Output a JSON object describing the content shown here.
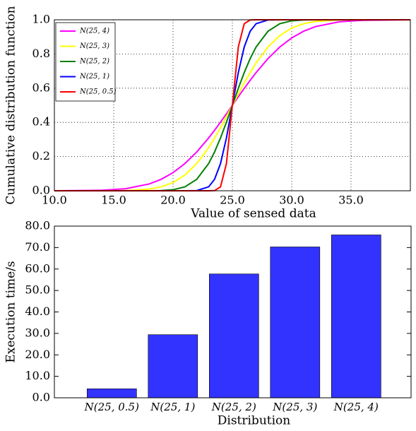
{
  "chart_data": [
    {
      "type": "line",
      "xlabel": "Value of sensed data",
      "ylabel": "Cumulative distribution function",
      "x": [
        10,
        14,
        16,
        18,
        19,
        20,
        21,
        22,
        23,
        23.5,
        24,
        24.5,
        25,
        25.5,
        26,
        26.5,
        27,
        28,
        29,
        30,
        31,
        32,
        34,
        36,
        40
      ],
      "series": [
        {
          "name": "N(25, 4)",
          "color": "#ff00ff",
          "values": [
            0,
            0.003,
            0.012,
            0.04,
            0.067,
            0.106,
            0.159,
            0.227,
            0.309,
            0.354,
            0.401,
            0.45,
            0.5,
            0.55,
            0.599,
            0.646,
            0.691,
            0.773,
            0.841,
            0.894,
            0.933,
            0.96,
            0.988,
            0.997,
            1
          ]
        },
        {
          "name": "N(25, 3)",
          "color": "#ffff00",
          "values": [
            0,
            0,
            0.001,
            0.01,
            0.023,
            0.048,
            0.092,
            0.159,
            0.252,
            0.309,
            0.369,
            0.434,
            0.5,
            0.566,
            0.631,
            0.691,
            0.748,
            0.841,
            0.908,
            0.952,
            0.977,
            0.99,
            0.999,
            1,
            1
          ]
        },
        {
          "name": "N(25, 2)",
          "color": "#007f00",
          "values": [
            0,
            0,
            0,
            0,
            0.001,
            0.006,
            0.023,
            0.067,
            0.159,
            0.227,
            0.309,
            0.401,
            0.5,
            0.599,
            0.691,
            0.773,
            0.841,
            0.933,
            0.977,
            0.994,
            0.999,
            1,
            1,
            1,
            1
          ]
        },
        {
          "name": "N(25, 1)",
          "color": "#0000ff",
          "values": [
            0,
            0,
            0,
            0,
            0,
            0,
            0,
            0.001,
            0.023,
            0.067,
            0.159,
            0.309,
            0.5,
            0.691,
            0.841,
            0.933,
            0.977,
            0.999,
            1,
            1,
            1,
            1,
            1,
            1,
            1
          ]
        },
        {
          "name": "N(25, 0.5)",
          "color": "#ff0000",
          "values": [
            0,
            0,
            0,
            0,
            0,
            0,
            0,
            0,
            0,
            0.001,
            0.023,
            0.159,
            0.5,
            0.841,
            0.977,
            0.999,
            1,
            1,
            1,
            1,
            1,
            1,
            1,
            1,
            1
          ]
        }
      ],
      "xlim": [
        10,
        40
      ],
      "xticks": [
        {
          "value": 10,
          "label": "10.0"
        },
        {
          "value": 15,
          "label": "15.0"
        },
        {
          "value": 20,
          "label": "20.0"
        },
        {
          "value": 25,
          "label": "25.0"
        },
        {
          "value": 30,
          "label": "30.0"
        },
        {
          "value": 35,
          "label": "35.0"
        }
      ],
      "ylim": [
        0,
        1
      ],
      "yticks": [
        {
          "value": 0,
          "label": "0.0"
        },
        {
          "value": 0.2,
          "label": "0.2"
        },
        {
          "value": 0.4,
          "label": "0.4"
        },
        {
          "value": 0.6,
          "label": "0.6"
        },
        {
          "value": 0.8,
          "label": "0.8"
        },
        {
          "value": 1,
          "label": "1.0"
        }
      ],
      "grid": true,
      "legend": "upper left"
    },
    {
      "type": "bar",
      "xlabel": "Distribution",
      "ylabel": "Execution time/s",
      "categories": [
        "N(25, 0.5)",
        "N(25, 1)",
        "N(25, 2)",
        "N(25, 3)",
        "N(25, 4)"
      ],
      "values": [
        4.2,
        29.4,
        57.7,
        70.3,
        75.9
      ],
      "color": "#3333ff",
      "ylim": [
        0,
        80
      ],
      "yticks": [
        {
          "value": 0,
          "label": "0.0"
        },
        {
          "value": 10,
          "label": "10.0"
        },
        {
          "value": 20,
          "label": "20.0"
        },
        {
          "value": 30,
          "label": "30.0"
        },
        {
          "value": 40,
          "label": "40.0"
        },
        {
          "value": 50,
          "label": "50.0"
        },
        {
          "value": 60,
          "label": "60.0"
        },
        {
          "value": 70,
          "label": "70.0"
        },
        {
          "value": 80,
          "label": "80.0"
        }
      ],
      "grid": false
    }
  ]
}
